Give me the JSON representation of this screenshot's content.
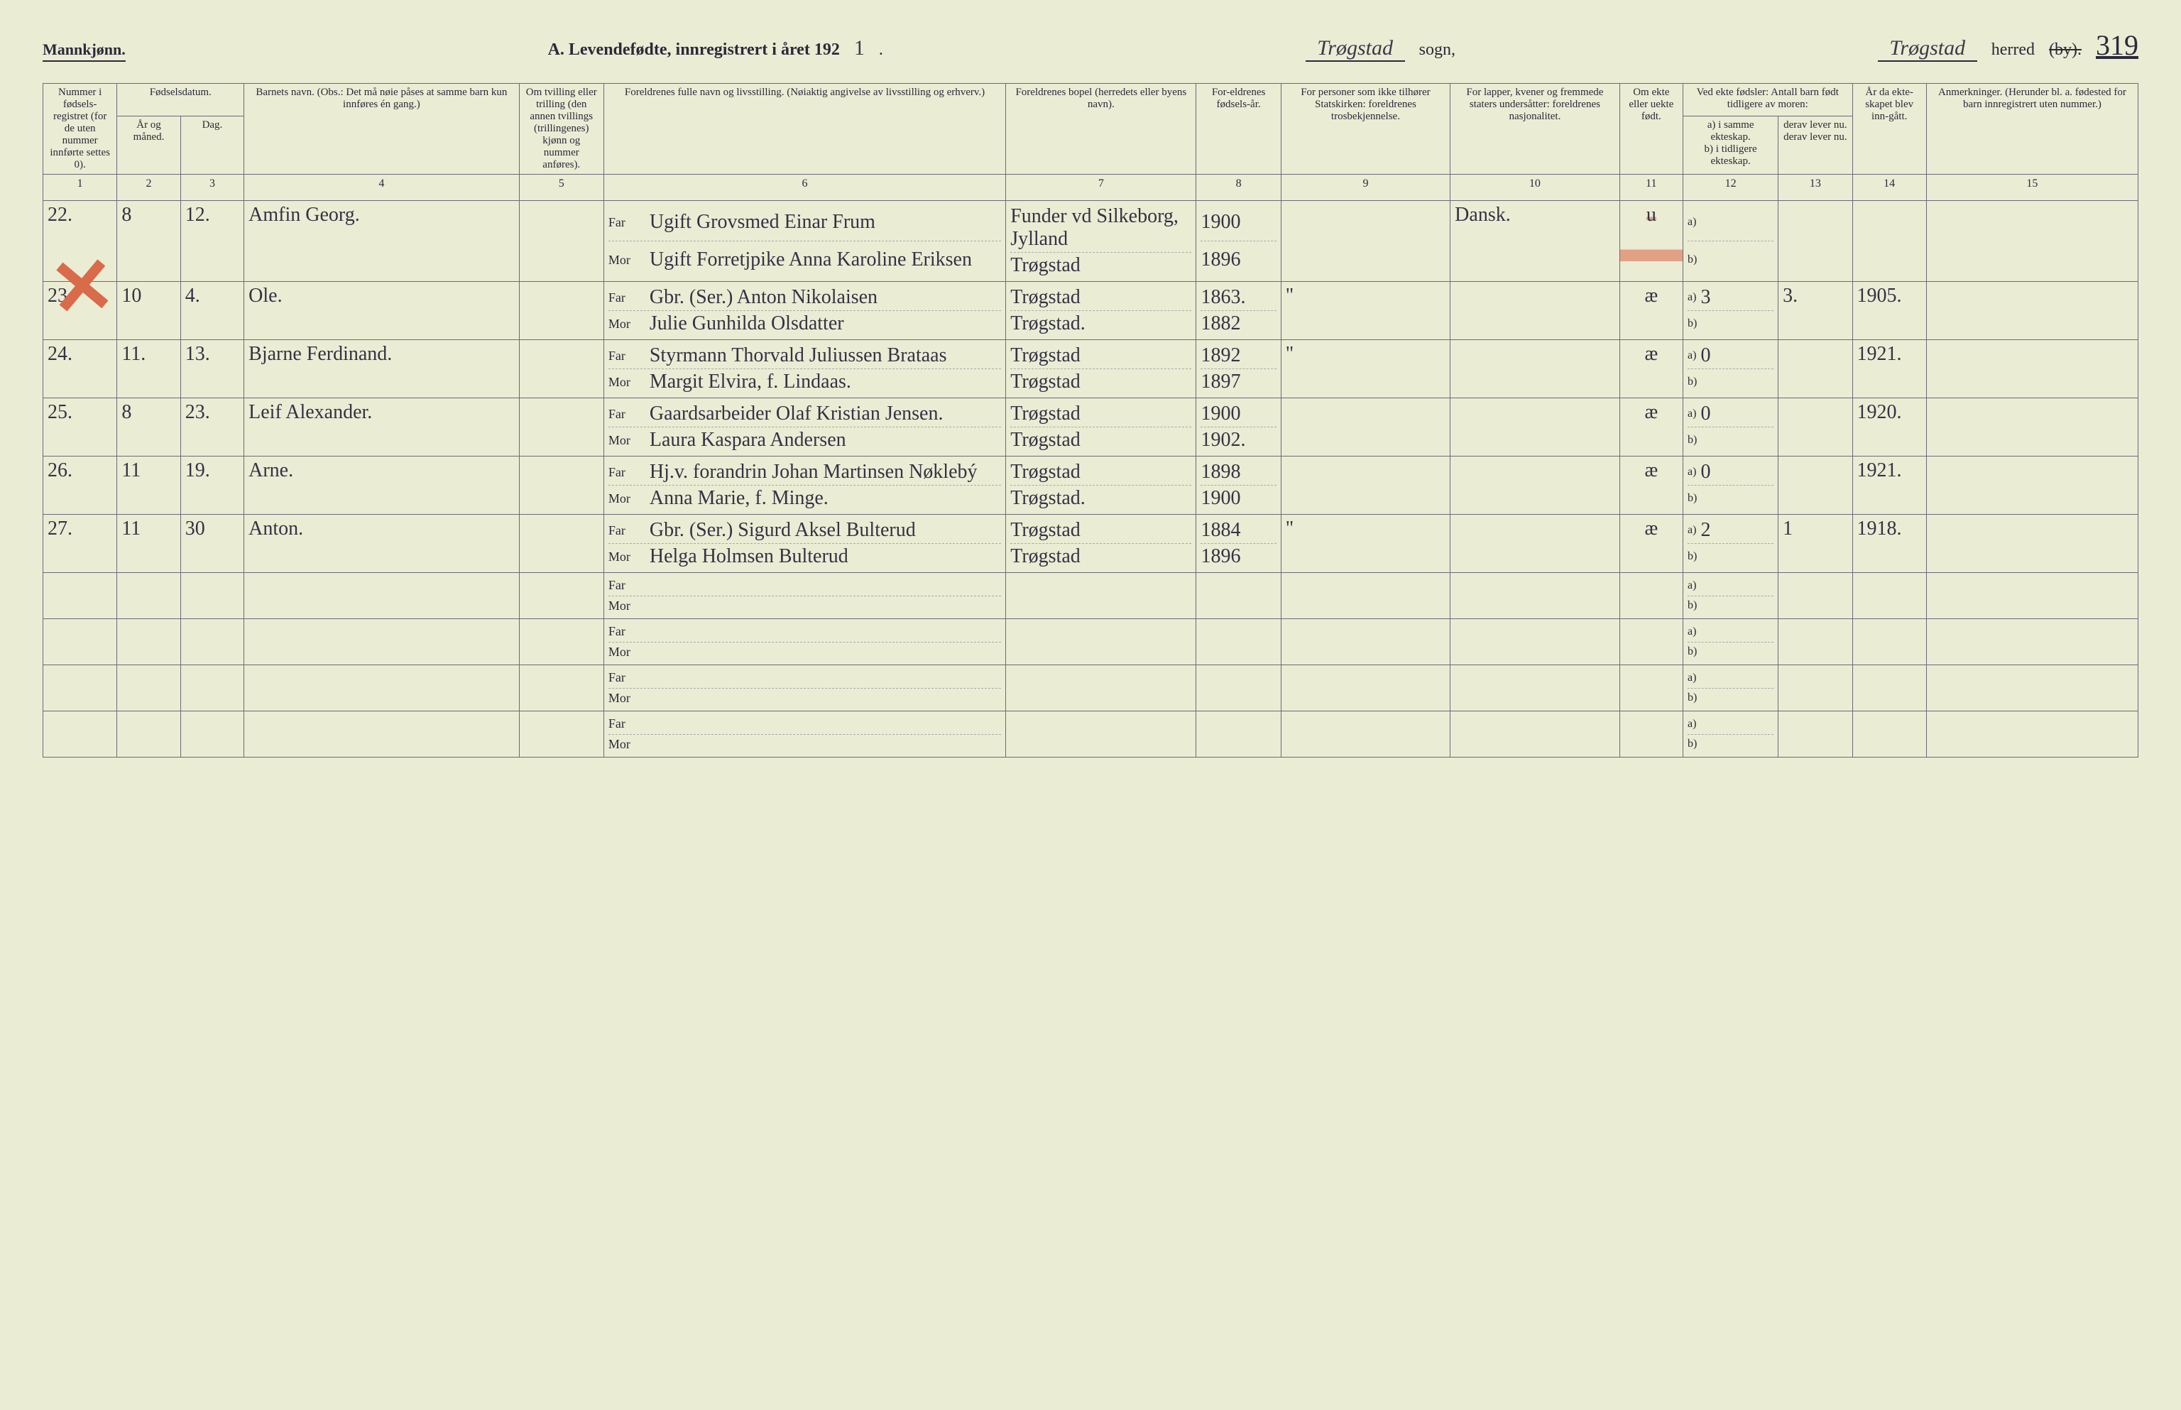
{
  "header": {
    "gender": "Mannkjønn.",
    "title": "A.  Levendefødte, innregistrert i året 192",
    "year_suffix": "1",
    "sogn_label": "sogn,",
    "sogn_value": "Trøgstad",
    "herred_label": "herred",
    "herred_by": "(by).",
    "herred_value": "Trøgstad",
    "page_number": "319"
  },
  "columns": {
    "c1": "Nummer i fødsels-registret (for de uten nummer innførte settes 0).",
    "c2_top": "Fødselsdatum.",
    "c2a": "År og måned.",
    "c2b": "Dag.",
    "c4": "Barnets navn.\n(Obs.: Det må nøie påses at samme barn kun innføres én gang.)",
    "c5": "Om tvilling eller trilling (den annen tvillings (trillingenes) kjønn og nummer anføres).",
    "c6": "Foreldrenes fulle navn og livsstilling.\n(Nøiaktig angivelse av livsstilling og erhverv.)",
    "c7": "Foreldrenes bopel (herredets eller byens navn).",
    "c8": "For-eldrenes fødsels-år.",
    "c9": "For personer som ikke tilhører Statskirken: foreldrenes trosbekjennelse.",
    "c10": "For lapper, kvener og fremmede staters undersåtter: foreldrenes nasjonalitet.",
    "c11": "Om ekte eller uekte født.",
    "c12_top": "Ved ekte fødsler: Antall barn født tidligere av moren:",
    "c12a": "a) i samme ekteskap.",
    "c12b": "b) i tidligere ekteskap.",
    "c13a": "derav lever nu.",
    "c13b": "derav lever nu.",
    "c14": "År da ekte-skapet blev inn-gått.",
    "c15": "Anmerkninger.\n(Herunder bl. a. fødested for barn innregistrert uten nummer.)"
  },
  "colnums": [
    "1",
    "2",
    "3",
    "4",
    "5",
    "6",
    "7",
    "8",
    "9",
    "10",
    "11",
    "12",
    "13",
    "14",
    "15"
  ],
  "far_label": "Far",
  "mor_label": "Mor",
  "a_label": "a)",
  "b_label": "b)",
  "rows": [
    {
      "no": "22.",
      "month": "8",
      "day": "12.",
      "child_name": "Amfin Georg.",
      "twin": "",
      "far": "Ugift Grovsmed Einar Frum",
      "mor": "Ugift Forretjpike Anna Karoline Eriksen",
      "bopel_far": "Funder vd Silkeborg, Jylland",
      "bopel_mor": "Trøgstad",
      "year_far": "1900",
      "year_mor": "1896",
      "c9": "",
      "c10": "Dansk.",
      "c11": "u",
      "c11_struck": true,
      "c12a": "",
      "c12b": "",
      "c13": "",
      "c14": "",
      "c15": "",
      "marked_red": true
    },
    {
      "no": "23.",
      "month": "10",
      "day": "4.",
      "child_name": "Ole.",
      "twin": "",
      "far": "Gbr. (Ser.) Anton Nikolaisen",
      "mor": "Julie Gunhilda Olsdatter",
      "bopel_far": "Trøgstad",
      "bopel_mor": "Trøgstad.",
      "year_far": "1863.",
      "year_mor": "1882",
      "c9": "\"",
      "c10": "",
      "c11": "æ",
      "c12a": "3",
      "c12b": "",
      "c13": "3.",
      "c14": "1905.",
      "c15": ""
    },
    {
      "no": "24.",
      "month": "11.",
      "day": "13.",
      "child_name": "Bjarne Ferdinand.",
      "twin": "",
      "far": "Styrmann Thorvald Juliussen Brataas",
      "mor": "Margit Elvira, f. Lindaas.",
      "bopel_far": "Trøgstad",
      "bopel_mor": "Trøgstad",
      "year_far": "1892",
      "year_mor": "1897",
      "c9": "\"",
      "c10": "",
      "c11": "æ",
      "c12a": "0",
      "c12b": "",
      "c13": "",
      "c14": "1921.",
      "c15": ""
    },
    {
      "no": "25.",
      "month": "8",
      "day": "23.",
      "child_name": "Leif Alexander.",
      "twin": "",
      "far": "Gaardsarbeider Olaf Kristian Jensen.",
      "mor": "Laura Kaspara Andersen",
      "bopel_far": "Trøgstad",
      "bopel_mor": "Trøgstad",
      "year_far": "1900",
      "year_mor": "1902.",
      "c9": "",
      "c10": "",
      "c11": "æ",
      "c12a": "0",
      "c12b": "",
      "c13": "",
      "c14": "1920.",
      "c15": ""
    },
    {
      "no": "26.",
      "month": "11",
      "day": "19.",
      "child_name": "Arne.",
      "twin": "",
      "far": "Hj.v. forandrin Johan Martinsen    Nøklebý",
      "mor": "Anna Marie, f. Minge.",
      "bopel_far": "Trøgstad",
      "bopel_mor": "Trøgstad.",
      "year_far": "1898",
      "year_mor": "1900",
      "c9": "",
      "c10": "",
      "c11": "æ",
      "c12a": "0",
      "c12b": "",
      "c13": "",
      "c14": "1921.",
      "c15": ""
    },
    {
      "no": "27.",
      "month": "11",
      "day": "30",
      "child_name": "Anton.",
      "twin": "",
      "far": "Gbr. (Ser.) Sigurd Aksel Bulterud",
      "mor": "Helga Holmsen Bulterud",
      "bopel_far": "Trøgstad",
      "bopel_mor": "Trøgstad",
      "year_far": "1884",
      "year_mor": "1896",
      "c9": "\"",
      "c10": "",
      "c11": "æ",
      "c12a": "2",
      "c12b": "",
      "c13": "1",
      "c14": "1918.",
      "c15": ""
    },
    {
      "empty": true
    },
    {
      "empty": true
    },
    {
      "empty": true
    },
    {
      "empty": true
    }
  ],
  "colwidths": {
    "c1": "3.5%",
    "c2": "3%",
    "c3": "3%",
    "c4": "13%",
    "c5": "4%",
    "c6": "19%",
    "c7": "9%",
    "c8": "4%",
    "c9": "8%",
    "c10": "8%",
    "c11": "3%",
    "c12": "4.5%",
    "c13": "3.5%",
    "c14": "3.5%",
    "c15": "10%"
  }
}
